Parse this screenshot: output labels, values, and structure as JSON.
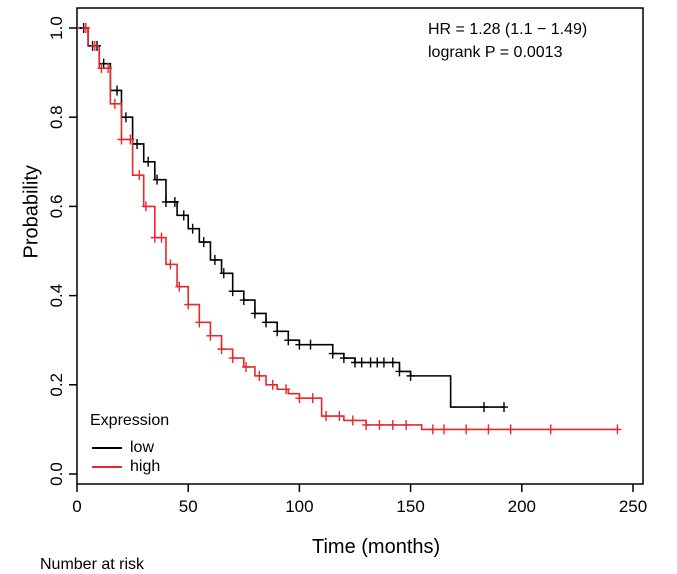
{
  "chart_data": {
    "type": "line",
    "title": "",
    "xlabel": "Time (months)",
    "ylabel": "Probability",
    "xlim": [
      0,
      250
    ],
    "ylim": [
      0,
      1
    ],
    "x_ticks": [
      "0",
      "50",
      "100",
      "150",
      "200",
      "250"
    ],
    "y_ticks": [
      "0.0",
      "0.2",
      "0.4",
      "0.6",
      "0.8",
      "1.0"
    ],
    "legend_title": "Expression",
    "legend_position": "bottom-left",
    "annotations": [
      "HR = 1.28 (1.1 − 1.49)",
      "logrank P = 0.0013"
    ],
    "footer_text": "Number at risk",
    "series": [
      {
        "name": "low",
        "color": "#000000",
        "x": [
          0,
          5,
          10,
          15,
          20,
          25,
          30,
          35,
          40,
          45,
          50,
          55,
          60,
          65,
          70,
          75,
          80,
          85,
          90,
          95,
          100,
          105,
          110,
          115,
          120,
          125,
          130,
          135,
          140,
          145,
          150,
          155,
          160,
          165,
          168,
          170,
          175,
          180,
          185,
          190,
          192
        ],
        "y": [
          1.0,
          0.96,
          0.92,
          0.86,
          0.8,
          0.74,
          0.7,
          0.66,
          0.61,
          0.58,
          0.55,
          0.52,
          0.48,
          0.45,
          0.41,
          0.39,
          0.36,
          0.34,
          0.32,
          0.3,
          0.29,
          0.29,
          0.29,
          0.27,
          0.26,
          0.25,
          0.25,
          0.25,
          0.25,
          0.23,
          0.22,
          0.22,
          0.22,
          0.22,
          0.15,
          0.15,
          0.15,
          0.15,
          0.15,
          0.15,
          0.15
        ],
        "censor_x": [
          3,
          7,
          9,
          12,
          18,
          22,
          27,
          32,
          36,
          40,
          44,
          48,
          52,
          57,
          62,
          66,
          70,
          75,
          80,
          85,
          90,
          95,
          100,
          105,
          115,
          120,
          125,
          128,
          132,
          135,
          138,
          142,
          145,
          150,
          183,
          192
        ]
      },
      {
        "name": "high",
        "color": "#e8282b",
        "x": [
          0,
          5,
          10,
          15,
          20,
          25,
          30,
          35,
          40,
          45,
          50,
          55,
          60,
          65,
          70,
          75,
          80,
          85,
          90,
          95,
          100,
          105,
          110,
          115,
          120,
          125,
          130,
          135,
          140,
          145,
          150,
          155,
          160,
          170,
          180,
          200,
          220,
          243
        ],
        "y": [
          1.0,
          0.96,
          0.91,
          0.83,
          0.75,
          0.67,
          0.6,
          0.53,
          0.47,
          0.42,
          0.38,
          0.34,
          0.31,
          0.28,
          0.26,
          0.24,
          0.22,
          0.2,
          0.19,
          0.18,
          0.17,
          0.17,
          0.13,
          0.13,
          0.12,
          0.12,
          0.11,
          0.11,
          0.11,
          0.11,
          0.11,
          0.1,
          0.1,
          0.1,
          0.1,
          0.1,
          0.1,
          0.1
        ],
        "censor_x": [
          4,
          8,
          11,
          14,
          17,
          20,
          24,
          28,
          31,
          35,
          38,
          42,
          46,
          50,
          55,
          60,
          65,
          70,
          76,
          82,
          88,
          94,
          100,
          106,
          112,
          118,
          124,
          130,
          136,
          142,
          148,
          160,
          165,
          175,
          185,
          195,
          213,
          243
        ]
      }
    ]
  }
}
